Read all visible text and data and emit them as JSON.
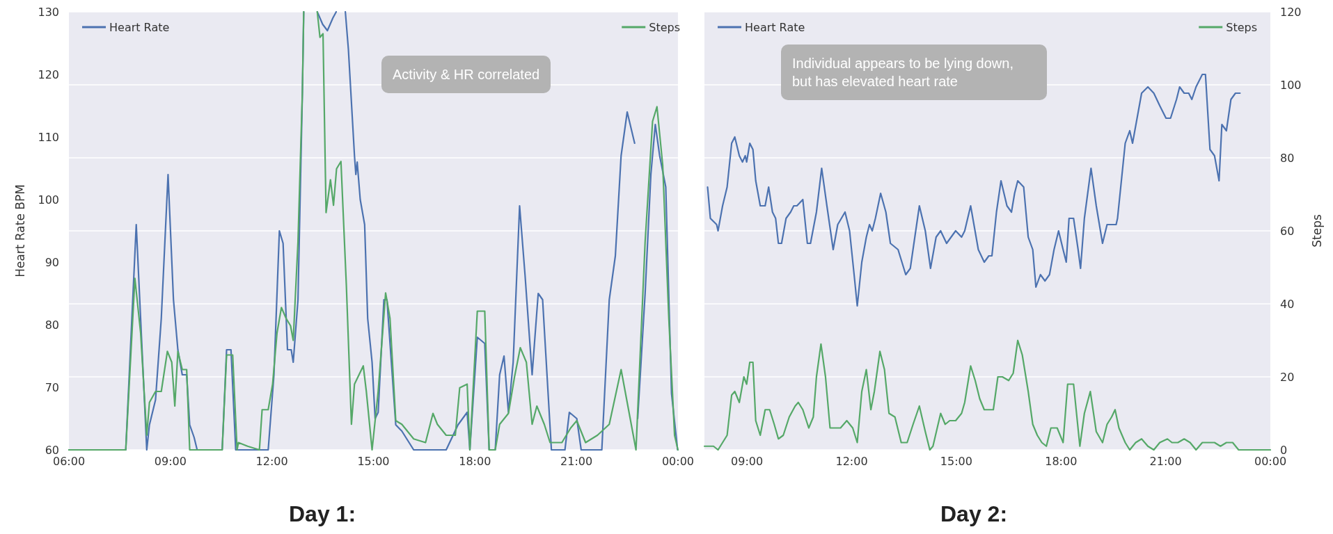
{
  "chart_data": [
    {
      "type": "line",
      "title": "Day 1:",
      "ylabel": "Heart Rate BPM",
      "annotations": [
        "Activity & HR correlated"
      ],
      "xlim": [
        6,
        24
      ],
      "xticks": [
        {
          "value": 6,
          "label": "06:00"
        },
        {
          "value": 9,
          "label": "09:00"
        },
        {
          "value": 12,
          "label": "12:00"
        },
        {
          "value": 15,
          "label": "15:00"
        },
        {
          "value": 18,
          "label": "18:00"
        },
        {
          "value": 21,
          "label": "21:00"
        },
        {
          "value": 24,
          "label": "00:00"
        }
      ],
      "ylim": [
        60,
        130
      ],
      "yticks": [
        60,
        70,
        80,
        90,
        100,
        110,
        120,
        130
      ],
      "y2lim": [
        0,
        120
      ],
      "grid": "y",
      "legend": "top",
      "series": [
        {
          "name": "Heart Rate",
          "color": "#4c72b0",
          "axis": "y",
          "x": [
            6,
            7.68,
            7.99,
            8.3,
            8.38,
            8.56,
            8.73,
            8.93,
            9.09,
            9.22,
            9.35,
            9.48,
            9.57,
            9.7,
            9.79,
            10.53,
            10.66,
            10.79,
            10.93,
            11.89,
            12.06,
            12.22,
            12.33,
            12.46,
            12.57,
            12.63,
            12.77,
            12.9,
            12.94,
            13.1,
            13.34,
            13.5,
            13.64,
            13.8,
            13.9,
            14.05,
            14.17,
            14.26,
            14.44,
            14.48,
            14.52,
            14.61,
            14.74,
            14.83,
            14.96,
            15.05,
            15.14,
            15.31,
            15.4,
            15.53,
            15.66,
            15.84,
            16.19,
            17.15,
            17.5,
            17.77,
            17.85,
            18.07,
            18.29,
            18.42,
            18.6,
            18.73,
            18.86,
            18.99,
            19.13,
            19.32,
            19.48,
            19.69,
            19.87,
            20,
            20.13,
            20.26,
            20.66,
            20.79,
            21.01,
            21.14,
            21.75,
            21.97,
            22.15,
            22.32,
            22.5,
            22.72,
            22.76,
            22.81,
            23.03,
            23.2,
            23.33,
            23.46,
            23.64,
            23.81,
            23.99
          ],
          "values": [
            60,
            60,
            96,
            60,
            64,
            68,
            81,
            104,
            84,
            76,
            72,
            72,
            64,
            62,
            60,
            60,
            76,
            76,
            60,
            60,
            72,
            95,
            93,
            76,
            76,
            74,
            84,
            117,
            130,
            null,
            130,
            128,
            127,
            129,
            130,
            null,
            130,
            124,
            107,
            104,
            106,
            100,
            96,
            81,
            74,
            65,
            66,
            84,
            84,
            74,
            64,
            63,
            60,
            60,
            64,
            66,
            60,
            78,
            77,
            60,
            60,
            72,
            75,
            66,
            74,
            99,
            88,
            72,
            85,
            84,
            72,
            60,
            60,
            66,
            65,
            60,
            60,
            84,
            91,
            107,
            114,
            109,
            null,
            65,
            85,
            104,
            112,
            107,
            102,
            69,
            60
          ]
        },
        {
          "name": "Steps",
          "color": "#55a868",
          "axis": "y2",
          "x": [
            6,
            7.68,
            7.95,
            8.12,
            8.3,
            8.38,
            8.56,
            8.73,
            8.91,
            9.04,
            9.13,
            9.22,
            9.35,
            9.48,
            9.57,
            10.53,
            10.66,
            10.84,
            10.97,
            11.01,
            11.28,
            11.63,
            11.71,
            11.89,
            12.02,
            12.15,
            12.28,
            12.42,
            12.55,
            12.63,
            12.77,
            12.9,
            12.94,
            13.1,
            13.34,
            13.42,
            13.51,
            13.6,
            13.73,
            13.82,
            13.91,
            14.04,
            14.2,
            14.35,
            14.44,
            14.7,
            14.79,
            14.96,
            15.14,
            15.36,
            15.49,
            15.66,
            15.84,
            16.19,
            16.54,
            16.76,
            16.89,
            17.15,
            17.42,
            17.55,
            17.77,
            17.85,
            18.07,
            18.29,
            18.42,
            18.6,
            18.73,
            18.99,
            19.17,
            19.34,
            19.52,
            19.69,
            19.83,
            20.05,
            20.22,
            20.57,
            20.83,
            21.01,
            21.27,
            21.62,
            21.97,
            22.32,
            22.5,
            22.76,
            23.03,
            23.25,
            23.38,
            23.55,
            23.73,
            23.9,
            24
          ],
          "values": [
            0,
            0,
            47,
            32,
            4,
            13,
            16,
            16,
            27,
            24,
            12,
            27,
            22,
            22,
            0,
            0,
            26,
            26,
            0,
            2,
            1,
            0,
            11,
            11,
            18,
            32,
            39,
            36,
            34,
            30,
            57,
            98,
            120,
            null,
            120,
            113,
            114,
            65,
            74,
            67,
            77,
            79,
            45,
            7,
            18,
            23,
            16,
            0,
            16,
            43,
            36,
            8,
            7,
            3,
            2,
            10,
            7,
            4,
            4,
            17,
            18,
            0,
            38,
            38,
            0,
            0,
            7,
            10,
            20,
            28,
            24,
            7,
            12,
            7,
            2,
            2,
            6,
            8,
            2,
            4,
            7,
            22,
            13,
            0,
            57,
            90,
            94,
            78,
            36,
            4,
            0
          ]
        }
      ]
    },
    {
      "type": "line",
      "title": "Day 2:",
      "y2label": "Steps",
      "annotations": [
        "Individual appears to be lying down, but has elevated heart rate"
      ],
      "xlim": [
        7.78,
        24
      ],
      "xticks": [
        {
          "value": 9,
          "label": "09:00"
        },
        {
          "value": 12,
          "label": "12:00"
        },
        {
          "value": 15,
          "label": "15:00"
        },
        {
          "value": 18,
          "label": "18:00"
        },
        {
          "value": 21,
          "label": "21:00"
        },
        {
          "value": 24,
          "label": "00:00"
        }
      ],
      "ylim": [
        60,
        130
      ],
      "y2lim": [
        0,
        120
      ],
      "y2ticks": [
        0,
        20,
        40,
        60,
        80,
        100,
        120
      ],
      "grid": "y",
      "legend": "top",
      "series": [
        {
          "name": "Heart Rate",
          "color": "#4c72b0",
          "axis": "y",
          "x": [
            7.87,
            7.95,
            8.13,
            8.17,
            8.3,
            8.43,
            8.56,
            8.65,
            8.78,
            8.87,
            8.95,
            8.99,
            9.08,
            9.17,
            9.25,
            9.38,
            9.52,
            9.62,
            9.73,
            9.82,
            9.9,
            9.99,
            10.12,
            10.25,
            10.34,
            10.43,
            10.6,
            10.73,
            10.82,
            10.99,
            11.14,
            11.29,
            11.47,
            11.6,
            11.81,
            11.94,
            12.07,
            12.16,
            12.29,
            12.42,
            12.51,
            12.59,
            12.68,
            12.83,
            12.98,
            13.11,
            13.33,
            13.55,
            13.68,
            13.94,
            14.11,
            14.26,
            14.42,
            14.55,
            14.72,
            14.98,
            15.15,
            15.24,
            15.41,
            15.63,
            15.8,
            15.93,
            16.02,
            16.15,
            16.28,
            16.45,
            16.58,
            16.67,
            16.76,
            16.93,
            17.06,
            17.19,
            17.28,
            17.41,
            17.54,
            17.67,
            17.8,
            17.93,
            18.06,
            18.15,
            18.23,
            18.36,
            18.49,
            18.56,
            18.67,
            18.86,
            19.01,
            19.19,
            19.32,
            19.45,
            19.58,
            19.62,
            19.84,
            19.97,
            20.05,
            20.31,
            20.49,
            20.66,
            20.83,
            21.01,
            21.14,
            21.31,
            21.4,
            21.53,
            21.66,
            21.75,
            21.87,
            22.05,
            22.14,
            22.27,
            22.4,
            22.53,
            22.61,
            22.74,
            22.87,
            23,
            23.13
          ],
          "values": [
            102,
            97,
            96,
            95,
            99,
            102,
            109,
            110,
            107,
            106,
            107,
            106,
            109,
            108,
            103,
            99,
            99,
            102,
            98,
            97,
            93,
            93,
            97,
            98,
            99,
            99,
            100,
            93,
            93,
            98,
            105,
            99,
            92,
            96,
            98,
            95,
            88,
            83,
            90,
            94,
            96,
            95,
            97,
            101,
            98,
            93,
            92,
            88,
            89,
            99,
            95,
            89,
            94,
            95,
            93,
            95,
            94,
            95,
            99,
            92,
            90,
            91,
            91,
            98,
            103,
            99,
            98,
            101,
            103,
            102,
            94,
            92,
            86,
            88,
            87,
            88,
            92,
            95,
            92,
            90,
            97,
            97,
            92,
            89,
            97,
            105,
            99,
            93,
            96,
            96,
            96,
            97,
            109,
            111,
            109,
            117,
            118,
            117,
            115,
            113,
            113,
            116,
            118,
            117,
            117,
            116,
            118,
            120,
            120,
            108,
            107,
            103,
            112,
            111,
            116,
            117,
            117
          ]
        },
        {
          "name": "Steps",
          "color": "#55a868",
          "axis": "y2",
          "x": [
            7.78,
            8.04,
            8.17,
            8.3,
            8.43,
            8.56,
            8.65,
            8.78,
            8.91,
            8.99,
            9.08,
            9.17,
            9.25,
            9.38,
            9.52,
            9.65,
            9.78,
            9.9,
            10.04,
            10.21,
            10.38,
            10.47,
            10.6,
            10.77,
            10.9,
            10.99,
            11.12,
            11.25,
            11.38,
            11.51,
            11.68,
            11.86,
            12.03,
            12.16,
            12.29,
            12.42,
            12.55,
            12.65,
            12.81,
            12.94,
            13.07,
            13.24,
            13.42,
            13.59,
            13.76,
            13.94,
            14.11,
            14.24,
            14.33,
            14.55,
            14.68,
            14.81,
            14.98,
            15.15,
            15.24,
            15.41,
            15.54,
            15.67,
            15.8,
            15.93,
            16.06,
            16.19,
            16.32,
            16.5,
            16.63,
            16.76,
            16.89,
            17.06,
            17.19,
            17.32,
            17.45,
            17.58,
            17.71,
            17.89,
            18.06,
            18.19,
            18.36,
            18.54,
            18.67,
            18.84,
            19.01,
            19.19,
            19.32,
            19.45,
            19.55,
            19.66,
            19.84,
            19.97,
            20.14,
            20.31,
            20.49,
            20.66,
            20.83,
            21.05,
            21.18,
            21.35,
            21.53,
            21.7,
            21.87,
            22.05,
            22.22,
            22.4,
            22.57,
            22.74,
            22.92,
            23.09,
            24
          ],
          "values": [
            1,
            1,
            0,
            2,
            4,
            15,
            16,
            13,
            20,
            18,
            24,
            24,
            8,
            4,
            11,
            11,
            7,
            3,
            4,
            9,
            12,
            13,
            11,
            6,
            9,
            20,
            29,
            20,
            6,
            6,
            6,
            8,
            6,
            2,
            16,
            22,
            11,
            16,
            27,
            22,
            10,
            9,
            2,
            2,
            7,
            12,
            5,
            0,
            1,
            10,
            7,
            8,
            8,
            10,
            13,
            23,
            19,
            14,
            11,
            11,
            11,
            20,
            20,
            19,
            21,
            30,
            26,
            16,
            7,
            4,
            2,
            1,
            6,
            6,
            2,
            18,
            18,
            1,
            10,
            16,
            5,
            2,
            7,
            9,
            11,
            6,
            2,
            0,
            2,
            3,
            1,
            0,
            2,
            3,
            2,
            2,
            3,
            2,
            0,
            2,
            2,
            2,
            1,
            2,
            2,
            0,
            0
          ]
        }
      ]
    }
  ]
}
